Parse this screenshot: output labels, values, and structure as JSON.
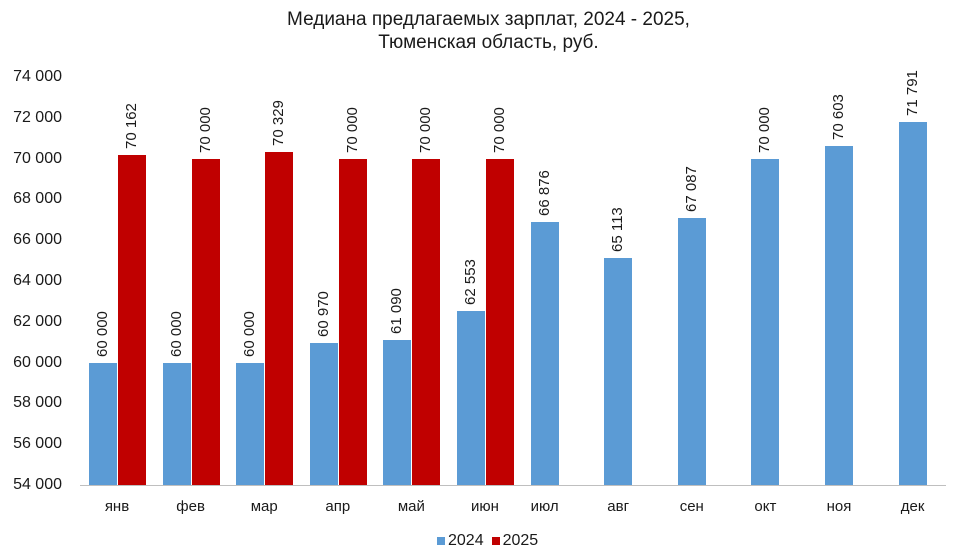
{
  "chart_data": {
    "type": "bar",
    "title": "Медиана предлагаемых зарплат, 2024 - 2025,",
    "subtitle": "Тюменская область, руб.",
    "xlabel": "",
    "ylabel": "",
    "ylim": [
      54000,
      74000
    ],
    "yticks": [
      "54 000",
      "56 000",
      "58 000",
      "60 000",
      "62 000",
      "64 000",
      "66 000",
      "68 000",
      "70 000",
      "72 000",
      "74 000"
    ],
    "grid": false,
    "legend_position": "bottom",
    "categories": [
      "янв",
      "фев",
      "мар",
      "апр",
      "май",
      "июн",
      "июл",
      "авг",
      "сен",
      "окт",
      "ноя",
      "дек"
    ],
    "series": [
      {
        "name": "2024",
        "color": "#5b9bd5",
        "values": [
          60000,
          60000,
          60000,
          60970,
          61090,
          62553,
          66876,
          65113,
          67087,
          70000,
          70603,
          71791
        ],
        "labels": [
          "60 000",
          "60 000",
          "60 000",
          "60 970",
          "61 090",
          "62 553",
          "66 876",
          "65 113",
          "67 087",
          "70 000",
          "70 603",
          "71 791"
        ]
      },
      {
        "name": "2025",
        "color": "#c00000",
        "values": [
          70162,
          70000,
          70329,
          70000,
          70000,
          70000,
          null,
          null,
          null,
          null,
          null,
          null
        ],
        "labels": [
          "70 162",
          "70 000",
          "70 329",
          "70 000",
          "70 000",
          "70 000",
          "",
          "",
          "",
          "",
          "",
          ""
        ]
      }
    ]
  },
  "legend": {
    "items": [
      {
        "label": "2024",
        "color": "#5b9bd5"
      },
      {
        "label": "2025",
        "color": "#c00000"
      }
    ]
  }
}
